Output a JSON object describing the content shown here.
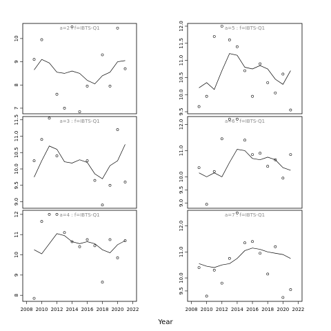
{
  "xlabel": "Year",
  "chart_data": [
    {
      "type": "scatter",
      "title": "a=2 : f=IBTS-Q1",
      "x": [
        2009,
        2010,
        2011,
        2012,
        2013,
        2014,
        2015,
        2016,
        2017,
        2018,
        2019,
        2020,
        2021
      ],
      "values": [
        9.1,
        9.95,
        null,
        7.6,
        7.0,
        10.5,
        6.85,
        7.95,
        null,
        9.3,
        7.95,
        10.45,
        8.7
      ],
      "smooth": [
        8.65,
        9.1,
        8.95,
        8.55,
        8.5,
        8.6,
        8.5,
        8.2,
        8.05,
        8.4,
        8.55,
        9.0,
        9.05
      ],
      "xlim": [
        2007.5,
        2022.5
      ],
      "ylim": [
        6.76,
        10.65
      ],
      "yticks": [
        7,
        8,
        9,
        10
      ]
    },
    {
      "type": "scatter",
      "title": "a=5 : f=IBTS-Q1",
      "x": [
        2009,
        2010,
        2011,
        2012,
        2013,
        2014,
        2015,
        2016,
        2017,
        2018,
        2019,
        2020,
        2021
      ],
      "values": [
        9.65,
        9.95,
        11.7,
        12.0,
        11.6,
        11.4,
        10.7,
        9.95,
        10.9,
        10.35,
        10.05,
        10.6,
        9.55
      ],
      "smooth": [
        10.2,
        10.35,
        10.15,
        10.7,
        11.2,
        11.15,
        10.8,
        10.75,
        10.85,
        10.75,
        10.45,
        10.3,
        10.7
      ],
      "xlim": [
        2007.5,
        2022.5
      ],
      "ylim": [
        9.44,
        12.08
      ],
      "yticks": [
        {
          "value": 9.5,
          "label": "9.5"
        },
        {
          "value": 10,
          "label": "10.0"
        },
        {
          "value": 10.5,
          "label": "10.5"
        },
        {
          "value": 11,
          "label": "11.0"
        },
        {
          "value": 11.5,
          "label": "11.5"
        },
        {
          "value": 12,
          "label": "12.0"
        }
      ]
    },
    {
      "type": "scatter",
      "title": "a=3 : f=IBTS-Q1",
      "x": [
        2009,
        2010,
        2011,
        2012,
        2013,
        2014,
        2015,
        2016,
        2017,
        2018,
        2019,
        2020,
        2021
      ],
      "values": [
        10.25,
        10.9,
        11.55,
        10.4,
        null,
        null,
        null,
        10.25,
        9.65,
        8.9,
        9.5,
        11.2,
        9.6
      ],
      "smooth": [
        9.75,
        10.25,
        10.7,
        10.6,
        10.22,
        10.18,
        10.28,
        10.2,
        9.85,
        9.7,
        10.1,
        10.25,
        10.75
      ],
      "xlim": [
        2007.5,
        2022.5
      ],
      "ylim": [
        8.8,
        11.6
      ],
      "yticks": [
        {
          "value": 9,
          "label": "9.0"
        },
        {
          "value": 9.5,
          "label": "9.5"
        },
        {
          "value": 10,
          "label": "10.0"
        },
        {
          "value": 10.5,
          "label": "10.5"
        },
        {
          "value": 11,
          "label": "11.0"
        },
        {
          "value": 11.5,
          "label": "11.5"
        }
      ]
    },
    {
      "type": "scatter",
      "title": "a=6 : f=IBTS-Q1",
      "x": [
        2009,
        2010,
        2011,
        2012,
        2013,
        2014,
        2015,
        2016,
        2017,
        2018,
        2019,
        2020,
        2021
      ],
      "values": [
        10.35,
        8.95,
        10.2,
        11.45,
        12.2,
        12.2,
        11.4,
        10.85,
        10.9,
        10.4,
        10.65,
        9.95,
        10.85
      ],
      "smooth": [
        10.15,
        10.0,
        10.15,
        10.0,
        10.55,
        11.05,
        11.0,
        10.7,
        10.65,
        10.75,
        10.65,
        10.35,
        10.25
      ],
      "xlim": [
        2007.5,
        2022.5
      ],
      "ylim": [
        8.8,
        12.3
      ],
      "yticks": [
        {
          "value": 9,
          "label": "9.0"
        },
        {
          "value": 9.5,
          "label": "9.5"
        },
        {
          "value": 10,
          "label": "10.0"
        },
        {
          "value": 11,
          "label": "11.0"
        },
        {
          "value": 12,
          "label": "12.0"
        }
      ]
    },
    {
      "type": "scatter",
      "title": "a=4 : f=IBTS-Q1",
      "x": [
        2009,
        2010,
        2011,
        2012,
        2013,
        2014,
        2015,
        2016,
        2017,
        2018,
        2019,
        2020,
        2021
      ],
      "values": [
        7.85,
        11.65,
        12.0,
        12.0,
        11.1,
        10.65,
        10.4,
        10.75,
        10.45,
        8.65,
        10.75,
        9.85,
        10.7
      ],
      "smooth": [
        10.25,
        10.05,
        10.55,
        11.05,
        10.95,
        10.65,
        10.55,
        10.65,
        10.55,
        10.25,
        10.1,
        10.5,
        10.7
      ],
      "xlim": [
        2007.5,
        2022.5
      ],
      "ylim": [
        7.7,
        12.2
      ],
      "yticks": [
        8,
        9,
        10,
        11,
        12
      ],
      "xticks": [
        2008,
        2010,
        2012,
        2014,
        2016,
        2018,
        2020,
        2022
      ]
    },
    {
      "type": "scatter",
      "title": "a=7 : f=IBTS-Q1",
      "x": [
        2009,
        2010,
        2011,
        2012,
        2013,
        2014,
        2015,
        2016,
        2017,
        2018,
        2019,
        2020,
        2021
      ],
      "values": [
        10.4,
        9.3,
        10.3,
        9.8,
        10.75,
        12.5,
        11.35,
        11.4,
        10.95,
        10.15,
        11.2,
        9.25,
        9.55
      ],
      "smooth": [
        10.55,
        10.45,
        10.4,
        10.5,
        10.55,
        10.75,
        11.05,
        11.15,
        11.1,
        11.0,
        10.95,
        10.9,
        10.75
      ],
      "xlim": [
        2007.5,
        2022.5
      ],
      "ylim": [
        9.1,
        12.6
      ],
      "yticks": [
        {
          "value": 9.5,
          "label": "9.5"
        },
        {
          "value": 10,
          "label": "10.0"
        },
        {
          "value": 11,
          "label": "11.0"
        },
        {
          "value": 12,
          "label": "12.0"
        }
      ],
      "xticks": [
        2008,
        2010,
        2012,
        2014,
        2016,
        2018,
        2020,
        2022
      ]
    }
  ]
}
